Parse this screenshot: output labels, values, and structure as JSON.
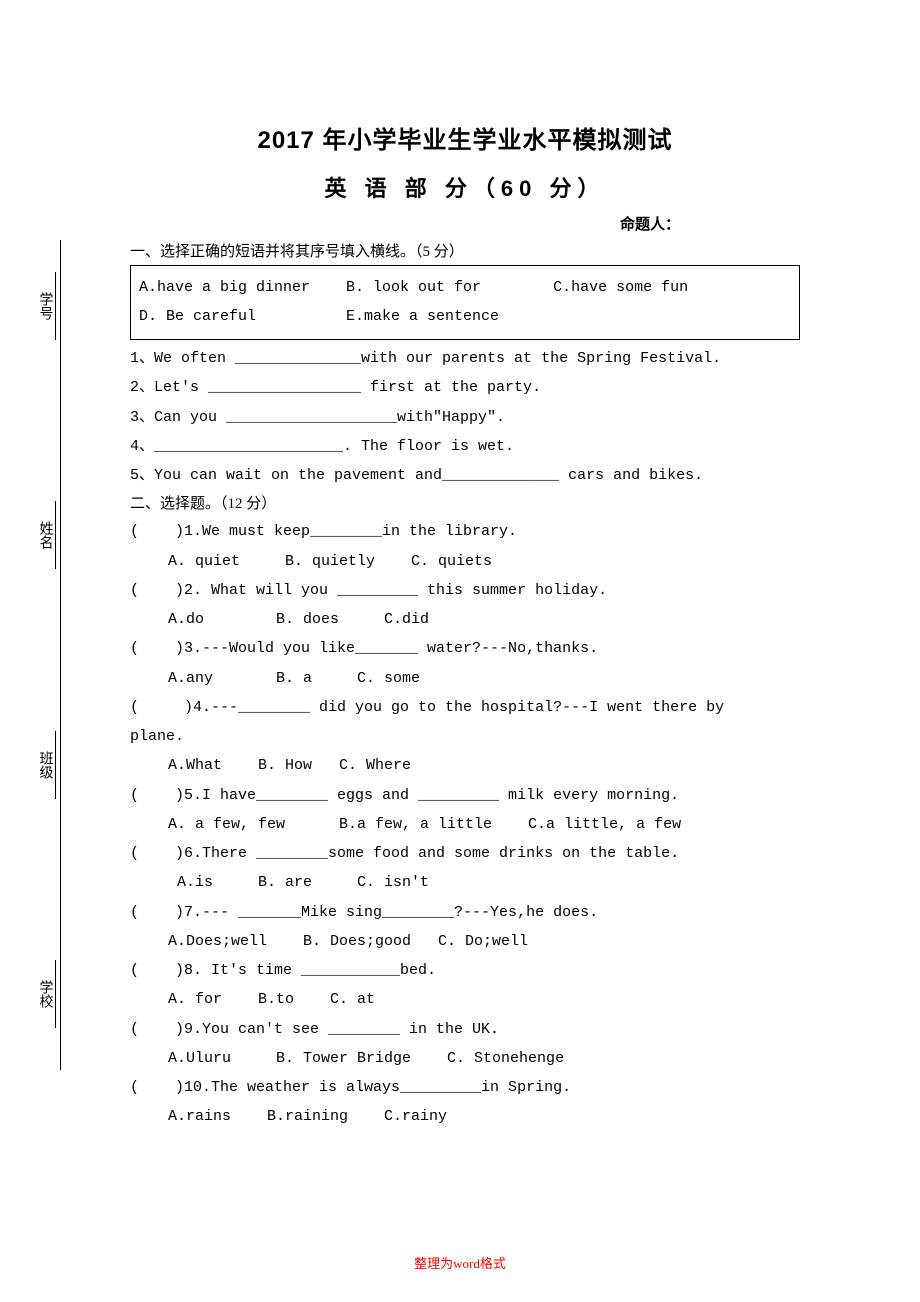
{
  "title": {
    "main": "2017 年小学毕业生学业水平模拟测试",
    "sub": "英 语 部 分（60 分）",
    "author": "命题人："
  },
  "section1": {
    "header": "一、选择正确的短语并将其序号填入横线。（5 分）",
    "options": {
      "line1": "A.have a big dinner    B. look out for        C.have some fun",
      "line2": "D. Be careful          E.make a sentence"
    },
    "questions": {
      "q1": "1、We often ______________with our parents at the Spring Festival.",
      "q2": "2、Let's _________________ first at the party.",
      "q3": "3、Can you ___________________with\"Happy\".",
      "q4": "4、_____________________. The floor is wet.",
      "q5": "5、You can wait on the pavement and_____________ cars and bikes."
    }
  },
  "section2": {
    "header": "二、选择题。（12 分）",
    "q1": {
      "stem": "(    )1.We must keep________in the library.",
      "opts": "A. quiet     B. quietly    C. quiets"
    },
    "q2": {
      "stem": "(    )2. What will you _________ this summer holiday.",
      "opts": "A.do        B. does     C.did"
    },
    "q3": {
      "stem": "(    )3.---Would you like_______ water?---No,thanks.",
      "opts": "A.any       B. a     C. some"
    },
    "q4": {
      "stem": "(     )4.---________ did you go to the hospital?---I went there by",
      "cont": "plane.",
      "opts": "A.What    B. How   C. Where"
    },
    "q5": {
      "stem": "(    )5.I have________ eggs and _________ milk every morning.",
      "opts": "A. a few, few      B.a few, a little    C.a little, a few"
    },
    "q6": {
      "stem": "(    )6.There ________some food and some drinks on the table.",
      "opts": " A.is     B. are     C. isn't"
    },
    "q7": {
      "stem": "(    )7.--- _______Mike sing________?---Yes,he does.",
      "opts": "A.Does;well    B. Does;good   C. Do;well"
    },
    "q8": {
      "stem": "(    )8. It's time ___________bed.",
      "opts": "A. for    B.to    C. at"
    },
    "q9": {
      "stem": "(    )9.You can't see ________ in the UK.",
      "opts": "A.Uluru     B. Tower Bridge    C. Stonehenge"
    },
    "q10": {
      "stem": "(    )10.The weather is always_________in Spring.",
      "opts": "A.rains    B.raining    C.rainy"
    }
  },
  "sidebar": {
    "item1": "学号",
    "item2": "姓名",
    "item3": "班级",
    "item4": "学校"
  },
  "footer": {
    "red": "整理为",
    "word": "word",
    "suffix": "格式"
  },
  "colors": {
    "background": "#ffffff",
    "text": "#000000",
    "footer_red": "#ff0000"
  }
}
